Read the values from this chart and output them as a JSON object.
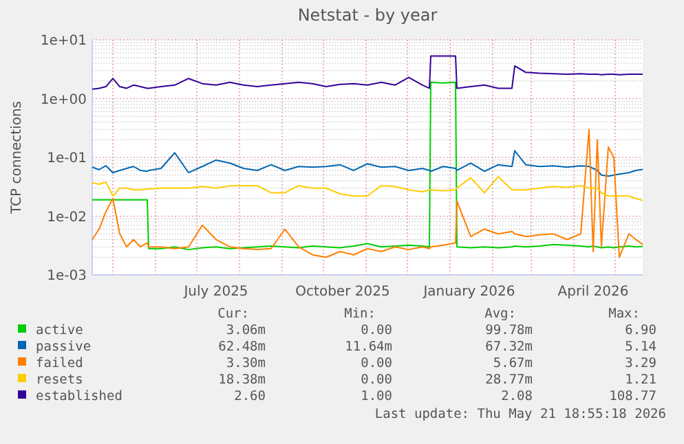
{
  "chart_data": {
    "type": "line",
    "title": "Netstat - by year",
    "ylabel": "TCP connections",
    "log": "y",
    "grid": true,
    "legend": "bottom",
    "xlim": [
      "2025-04-16",
      "2026-05-21"
    ],
    "xticks": [
      {
        "value": "2025-05-01",
        "label": null
      },
      {
        "value": "2025-06-01",
        "label": null
      },
      {
        "value": "2025-07-01",
        "label": null
      },
      {
        "value": "2025-07-15",
        "label": "July 2025"
      },
      {
        "value": "2025-08-01",
        "label": null
      },
      {
        "value": "2025-09-01",
        "label": null
      },
      {
        "value": "2025-10-01",
        "label": null
      },
      {
        "value": "2025-10-15",
        "label": "October 2025"
      },
      {
        "value": "2025-11-01",
        "label": null
      },
      {
        "value": "2025-12-01",
        "label": null
      },
      {
        "value": "2026-01-01",
        "label": null
      },
      {
        "value": "2026-01-15",
        "label": "January 2026"
      },
      {
        "value": "2026-02-01",
        "label": null
      },
      {
        "value": "2026-03-01",
        "label": null
      },
      {
        "value": "2026-04-01",
        "label": null
      },
      {
        "value": "2026-04-15",
        "label": "April 2026"
      },
      {
        "value": "2026-05-01",
        "label": null
      }
    ],
    "ylim": [
      0.001,
      10
    ],
    "yticks": [
      {
        "value": 0.001,
        "label": "1e-03"
      },
      {
        "value": 0.01,
        "label": "1e-02"
      },
      {
        "value": 0.1,
        "label": "1e-01"
      },
      {
        "value": 1,
        "label": "1e+00"
      },
      {
        "value": 10,
        "label": "1e+01"
      }
    ],
    "x": [
      "2025-04-16",
      "2025-04-21",
      "2025-04-26",
      "2025-05-01",
      "2025-05-06",
      "2025-05-11",
      "2025-05-16",
      "2025-05-21",
      "2025-05-26",
      "2025-05-27",
      "2025-06-05",
      "2025-06-15",
      "2025-06-25",
      "2025-07-05",
      "2025-07-15",
      "2025-07-25",
      "2025-08-04",
      "2025-08-14",
      "2025-08-24",
      "2025-09-03",
      "2025-09-13",
      "2025-09-23",
      "2025-10-03",
      "2025-10-13",
      "2025-10-23",
      "2025-11-02",
      "2025-11-12",
      "2025-11-22",
      "2025-12-02",
      "2025-12-12",
      "2025-12-17",
      "2025-12-18",
      "2025-12-27",
      "2026-01-05",
      "2026-01-06",
      "2026-01-16",
      "2026-01-26",
      "2026-02-05",
      "2026-02-15",
      "2026-02-17",
      "2026-02-25",
      "2026-03-07",
      "2026-03-17",
      "2026-03-27",
      "2026-04-06",
      "2026-04-12",
      "2026-04-15",
      "2026-04-18",
      "2026-04-21",
      "2026-04-26",
      "2026-04-30",
      "2026-05-04",
      "2026-05-11",
      "2026-05-16",
      "2026-05-21"
    ],
    "series": [
      {
        "name": "active",
        "color": "#00cc00",
        "values": [
          0.019,
          0.019,
          0.019,
          0.019,
          0.019,
          0.019,
          0.019,
          0.019,
          0.019,
          0.0028,
          0.0028,
          0.003,
          0.0027,
          0.0029,
          0.003,
          0.0028,
          0.0029,
          0.003,
          0.0031,
          0.003,
          0.0029,
          0.0031,
          0.003,
          0.0029,
          0.0031,
          0.0034,
          0.003,
          0.0031,
          0.0032,
          0.0031,
          0.003,
          1.9,
          1.85,
          1.9,
          0.003,
          0.0029,
          0.003,
          0.0029,
          0.003,
          0.0031,
          0.003,
          0.0031,
          0.0033,
          0.0032,
          0.0031,
          0.003,
          0.0031,
          0.003,
          0.0029,
          0.003,
          0.0029,
          0.003,
          0.0031,
          0.003,
          0.00306
        ]
      },
      {
        "name": "passive",
        "color": "#0066b3",
        "values": [
          0.068,
          0.062,
          0.072,
          0.055,
          0.06,
          0.065,
          0.07,
          0.06,
          0.058,
          0.06,
          0.065,
          0.12,
          0.055,
          0.07,
          0.09,
          0.08,
          0.065,
          0.06,
          0.075,
          0.06,
          0.07,
          0.068,
          0.07,
          0.075,
          0.06,
          0.078,
          0.068,
          0.07,
          0.06,
          0.065,
          0.06,
          0.058,
          0.07,
          0.065,
          0.06,
          0.08,
          0.058,
          0.075,
          0.07,
          0.13,
          0.075,
          0.07,
          0.072,
          0.068,
          0.072,
          0.07,
          0.065,
          0.06,
          0.05,
          0.048,
          0.05,
          0.052,
          0.055,
          0.06,
          0.0625
        ]
      },
      {
        "name": "failed",
        "color": "#ff8000",
        "values": [
          0.004,
          0.006,
          0.012,
          0.02,
          0.005,
          0.003,
          0.004,
          0.003,
          0.0035,
          0.003,
          0.003,
          0.0028,
          0.003,
          0.007,
          0.004,
          0.003,
          0.0028,
          0.0027,
          0.0028,
          0.006,
          0.003,
          0.0022,
          0.002,
          0.0025,
          0.0022,
          0.0028,
          0.0025,
          0.003,
          0.0027,
          0.003,
          0.0028,
          0.003,
          0.0032,
          0.0035,
          0.018,
          0.0045,
          0.006,
          0.005,
          0.0055,
          0.005,
          0.0045,
          0.0048,
          0.005,
          0.004,
          0.005,
          0.3,
          0.0025,
          0.2,
          0.003,
          0.15,
          0.1,
          0.002,
          0.005,
          0.004,
          0.0033
        ]
      },
      {
        "name": "resets",
        "color": "#ffcc00",
        "values": [
          0.037,
          0.035,
          0.038,
          0.022,
          0.03,
          0.03,
          0.028,
          0.028,
          0.029,
          0.029,
          0.03,
          0.03,
          0.03,
          0.032,
          0.03,
          0.033,
          0.033,
          0.033,
          0.025,
          0.025,
          0.033,
          0.03,
          0.03,
          0.024,
          0.022,
          0.022,
          0.033,
          0.032,
          0.028,
          0.026,
          0.028,
          0.028,
          0.027,
          0.028,
          0.03,
          0.045,
          0.025,
          0.047,
          0.028,
          0.028,
          0.028,
          0.03,
          0.032,
          0.031,
          0.033,
          0.03,
          0.03,
          0.03,
          0.025,
          0.022,
          0.022,
          0.022,
          0.022,
          0.02,
          0.0184
        ]
      },
      {
        "name": "established",
        "color": "#330099",
        "values": [
          1.45,
          1.5,
          1.6,
          2.2,
          1.6,
          1.5,
          1.7,
          1.6,
          1.5,
          1.5,
          1.6,
          1.7,
          2.2,
          1.8,
          1.7,
          1.9,
          1.7,
          1.6,
          1.7,
          1.8,
          1.9,
          1.8,
          1.6,
          1.75,
          1.8,
          1.7,
          1.9,
          1.7,
          2.3,
          1.7,
          1.5,
          5.3,
          5.3,
          5.3,
          1.5,
          1.6,
          1.7,
          1.5,
          1.5,
          3.6,
          2.8,
          2.7,
          2.65,
          2.6,
          2.65,
          2.6,
          2.6,
          2.6,
          2.55,
          2.6,
          2.6,
          2.55,
          2.6,
          2.6,
          2.6
        ]
      }
    ],
    "annotations": [
      "Cur:",
      "Min:",
      "Avg:",
      "Max:",
      "3.06m",
      "0.00",
      "99.78m",
      "6.90",
      "62.48m",
      "11.64m",
      "67.32m",
      "5.14",
      "3.30m",
      "0.00",
      "5.67m",
      "3.29",
      "18.38m",
      "0.00",
      "28.77m",
      "1.21",
      "2.60",
      "1.00",
      "2.08",
      "108.77",
      "Last update: Thu May 21 18:55:18 2026"
    ]
  }
}
